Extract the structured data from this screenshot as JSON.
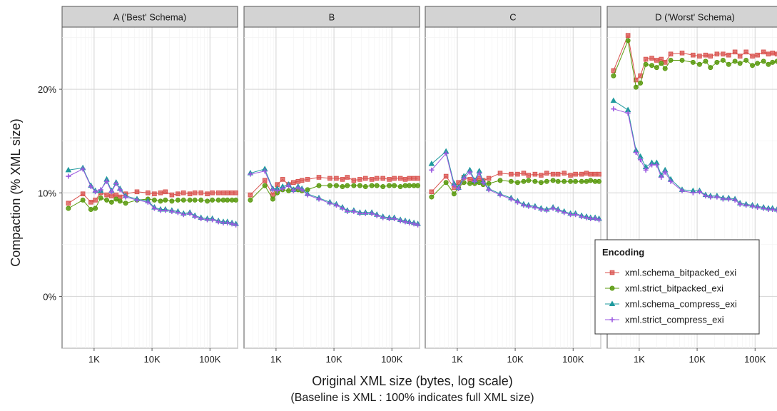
{
  "chart_data": {
    "type": "line",
    "facet_type": "grid",
    "panels": [
      "A ('Best' Schema)",
      "B",
      "C",
      "D ('Worst' Schema)"
    ],
    "xlabel": "Original  XML  size (bytes, log scale)",
    "caption": "(Baseline is  XML : 100% indicates full  XML  size)",
    "ylabel": "Compaction (%  XML  size)",
    "x_scale": "log",
    "x_ticks": [
      1000,
      10000,
      100000
    ],
    "x_tick_labels": [
      "1K",
      "10K",
      "100K"
    ],
    "xlim": [
      280,
      300000
    ],
    "y_ticks": [
      0,
      10,
      20
    ],
    "y_tick_labels": [
      "0%",
      "10%",
      "20%"
    ],
    "ylim": [
      -5,
      26
    ],
    "grid": true,
    "legend": {
      "title": "Encoding",
      "position": "bottom-right"
    },
    "colors": {
      "xml.schema_bitpacked_exi": "#d9534f",
      "xml.strict_bitpacked_exi": "#5a9a0f",
      "xml.schema_compress_exi": "#1f9a9e",
      "xml.strict_compress_exi": "#9b59e0"
    },
    "x": [
      360,
      640,
      880,
      1050,
      1300,
      1650,
      2000,
      2400,
      2800,
      3500,
      5500,
      8500,
      11000,
      14000,
      17000,
      22000,
      28000,
      35000,
      45000,
      55000,
      70000,
      90000,
      110000,
      140000,
      170000,
      200000,
      240000,
      280000
    ],
    "series": [
      {
        "name": "xml.schema_bitpacked_exi",
        "panels": [
          [
            9.0,
            9.9,
            9.1,
            9.3,
            10.0,
            9.8,
            9.7,
            9.8,
            9.6,
            9.9,
            10.1,
            10.0,
            9.9,
            10.0,
            10.1,
            9.8,
            9.9,
            10.0,
            9.9,
            10.0,
            10.0,
            9.9,
            10.0,
            10.0,
            10.0,
            10.0,
            10.0,
            10.0
          ],
          [
            9.8,
            11.2,
            9.8,
            10.8,
            11.3,
            10.8,
            11.0,
            11.1,
            11.2,
            11.3,
            11.5,
            11.4,
            11.4,
            11.3,
            11.5,
            11.2,
            11.3,
            11.4,
            11.3,
            11.4,
            11.4,
            11.3,
            11.4,
            11.4,
            11.3,
            11.4,
            11.4,
            11.4
          ],
          [
            10.1,
            11.6,
            10.5,
            11.0,
            11.5,
            11.3,
            11.2,
            11.4,
            11.2,
            11.4,
            11.9,
            11.8,
            11.8,
            11.9,
            11.7,
            11.8,
            11.7,
            11.9,
            11.8,
            11.8,
            11.9,
            11.7,
            11.8,
            11.8,
            11.9,
            11.8,
            11.8,
            11.8
          ],
          [
            21.8,
            25.2,
            20.9,
            21.3,
            22.9,
            23.0,
            22.8,
            22.9,
            22.6,
            23.4,
            23.5,
            23.3,
            23.2,
            23.3,
            23.2,
            23.4,
            23.4,
            23.3,
            23.6,
            23.2,
            23.6,
            23.2,
            23.3,
            23.6,
            23.4,
            23.5,
            23.4,
            23.6
          ]
        ]
      },
      {
        "name": "xml.strict_bitpacked_exi",
        "panels": [
          [
            8.5,
            9.3,
            8.4,
            8.5,
            9.5,
            9.3,
            9.1,
            9.4,
            9.2,
            9.0,
            9.3,
            9.4,
            9.3,
            9.2,
            9.3,
            9.2,
            9.3,
            9.3,
            9.3,
            9.3,
            9.3,
            9.2,
            9.3,
            9.3,
            9.3,
            9.3,
            9.3,
            9.3
          ],
          [
            9.3,
            10.7,
            9.4,
            10.0,
            10.3,
            10.2,
            10.3,
            10.3,
            10.2,
            10.3,
            10.7,
            10.7,
            10.7,
            10.6,
            10.7,
            10.7,
            10.7,
            10.6,
            10.7,
            10.7,
            10.6,
            10.7,
            10.7,
            10.6,
            10.7,
            10.7,
            10.7,
            10.7
          ],
          [
            9.6,
            11.0,
            9.9,
            10.5,
            11.0,
            10.9,
            10.9,
            11.0,
            10.8,
            10.9,
            11.2,
            11.1,
            11.0,
            11.1,
            11.2,
            11.1,
            11.0,
            11.1,
            11.2,
            11.1,
            11.1,
            11.1,
            11.1,
            11.1,
            11.1,
            11.2,
            11.1,
            11.1
          ],
          [
            21.3,
            24.7,
            20.2,
            20.6,
            22.4,
            22.3,
            22.1,
            22.5,
            22.0,
            22.8,
            22.8,
            22.6,
            22.4,
            22.7,
            22.1,
            22.6,
            22.8,
            22.4,
            22.7,
            22.5,
            22.8,
            22.3,
            22.5,
            22.7,
            22.4,
            22.6,
            22.7,
            22.8
          ]
        ]
      },
      {
        "name": "xml.schema_compress_exi",
        "panels": [
          [
            12.2,
            12.4,
            10.7,
            10.2,
            10.2,
            11.3,
            10.2,
            11.0,
            10.4,
            9.7,
            9.4,
            9.2,
            8.6,
            8.4,
            8.4,
            8.3,
            8.2,
            8.0,
            8.1,
            7.8,
            7.6,
            7.5,
            7.5,
            7.3,
            7.2,
            7.2,
            7.1,
            7.0
          ],
          [
            11.9,
            12.3,
            10.4,
            10.4,
            10.6,
            10.8,
            10.3,
            10.6,
            10.4,
            9.9,
            9.5,
            9.1,
            8.9,
            8.6,
            8.3,
            8.3,
            8.1,
            8.1,
            8.1,
            7.9,
            7.7,
            7.6,
            7.6,
            7.4,
            7.3,
            7.2,
            7.1,
            7.0
          ],
          [
            12.8,
            14.0,
            10.9,
            10.5,
            11.6,
            12.2,
            11.2,
            12.1,
            11.1,
            10.4,
            9.9,
            9.5,
            9.2,
            8.9,
            8.8,
            8.7,
            8.5,
            8.4,
            8.6,
            8.4,
            8.2,
            8.0,
            8.0,
            7.8,
            7.7,
            7.6,
            7.6,
            7.5
          ],
          [
            18.9,
            18.0,
            14.1,
            13.5,
            12.5,
            12.9,
            12.9,
            11.7,
            12.2,
            11.3,
            10.3,
            10.2,
            10.2,
            9.8,
            9.7,
            9.7,
            9.5,
            9.5,
            9.4,
            9.0,
            8.9,
            8.8,
            8.7,
            8.6,
            8.5,
            8.5,
            8.4,
            8.3
          ]
        ]
      },
      {
        "name": "xml.strict_compress_exi",
        "panels": [
          [
            11.6,
            12.3,
            10.6,
            10.1,
            10.3,
            11.1,
            10.1,
            10.9,
            10.3,
            9.6,
            9.3,
            9.1,
            8.5,
            8.3,
            8.3,
            8.2,
            8.1,
            7.9,
            8.0,
            7.7,
            7.5,
            7.4,
            7.4,
            7.2,
            7.1,
            7.1,
            7.0,
            6.9
          ],
          [
            11.8,
            12.1,
            10.3,
            10.2,
            10.4,
            10.7,
            10.2,
            10.5,
            10.3,
            9.8,
            9.4,
            9.0,
            8.8,
            8.5,
            8.2,
            8.2,
            8.0,
            8.0,
            8.0,
            7.8,
            7.6,
            7.5,
            7.5,
            7.3,
            7.2,
            7.1,
            7.0,
            6.9
          ],
          [
            12.2,
            13.8,
            10.7,
            10.4,
            11.4,
            12.0,
            11.1,
            11.9,
            11.0,
            10.3,
            9.8,
            9.4,
            9.1,
            8.8,
            8.7,
            8.6,
            8.4,
            8.3,
            8.5,
            8.3,
            8.1,
            7.9,
            7.9,
            7.7,
            7.6,
            7.5,
            7.5,
            7.4
          ],
          [
            18.1,
            17.7,
            13.9,
            13.2,
            12.2,
            12.7,
            12.7,
            11.5,
            12.0,
            11.1,
            10.2,
            10.0,
            10.1,
            9.7,
            9.6,
            9.6,
            9.4,
            9.4,
            9.3,
            8.9,
            8.8,
            8.7,
            8.6,
            8.5,
            8.4,
            8.4,
            8.3,
            8.2
          ]
        ]
      }
    ]
  }
}
